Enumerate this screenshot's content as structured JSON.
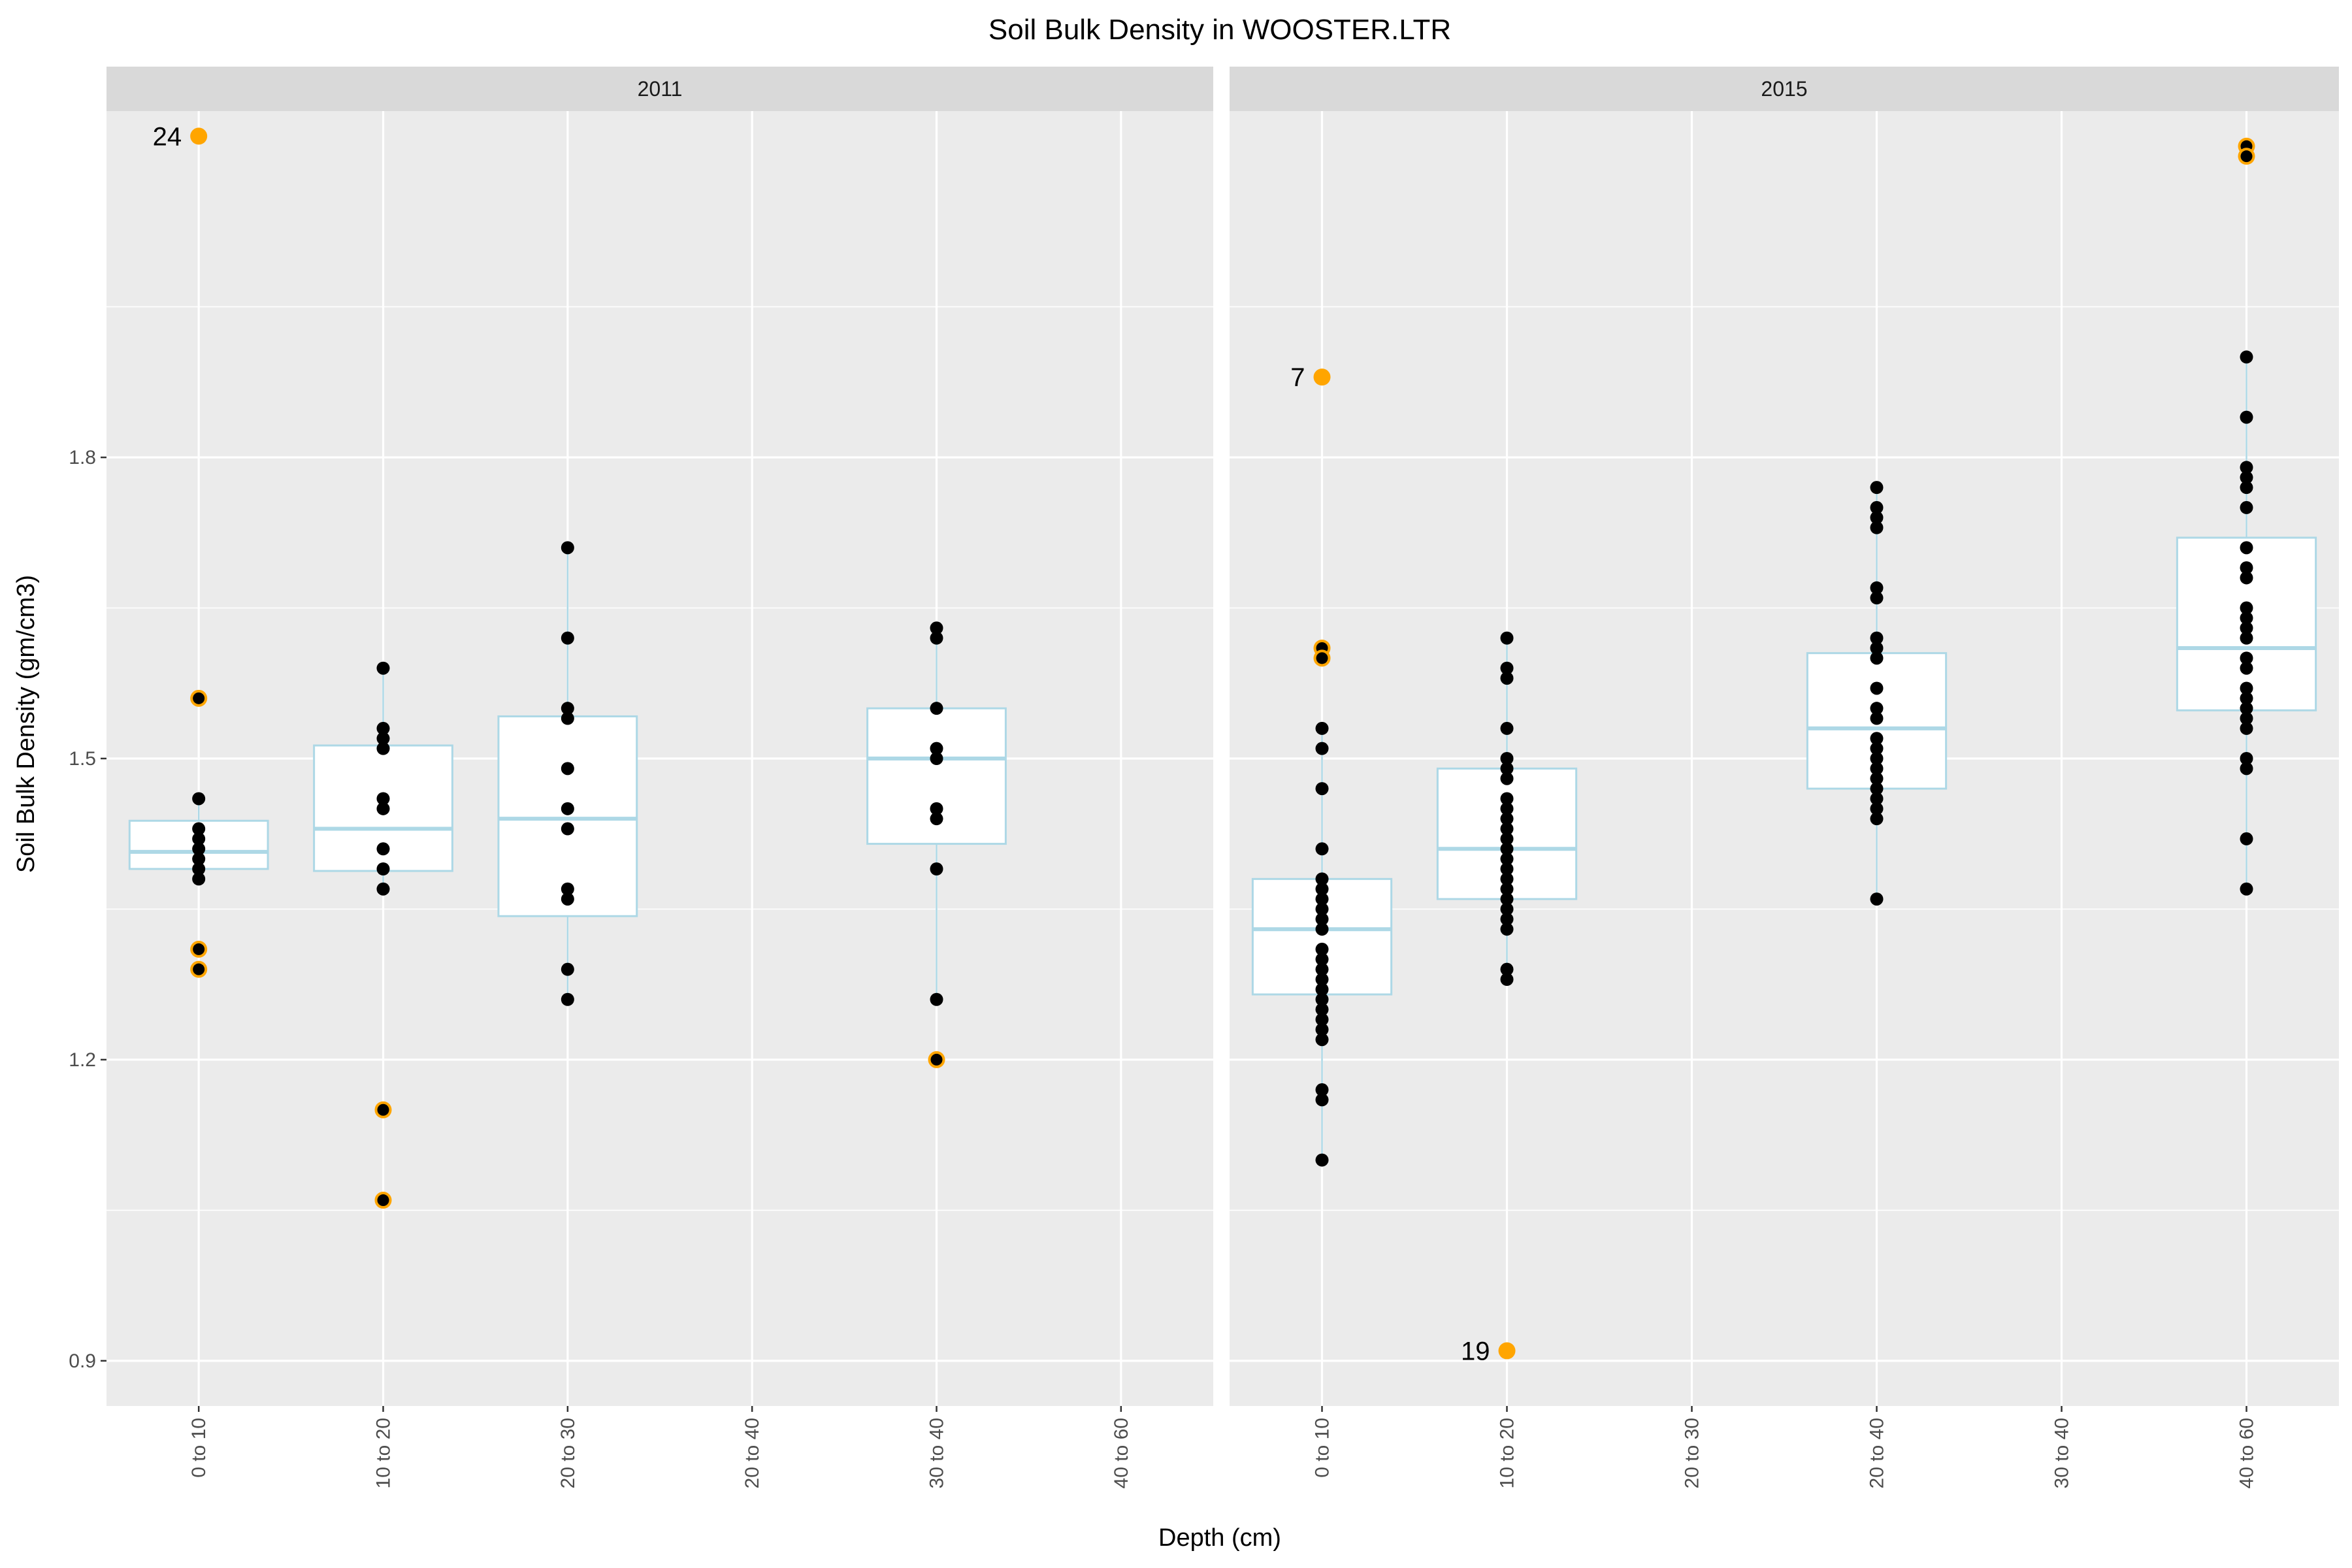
{
  "chart_data": {
    "type": "box",
    "title": "Soil Bulk Density in WOOSTER.LTR",
    "xlabel": "Depth (cm)",
    "ylabel": "Soil Bulk Density (gm/cm3)",
    "ylim": [
      0.855,
      2.145
    ],
    "y_ticks": [
      0.9,
      1.2,
      1.5,
      1.8
    ],
    "y_tick_labels": [
      "0.9",
      "1.2",
      "1.5",
      "1.8"
    ],
    "grid": true,
    "colors": {
      "panel_bg": "#ebebeb",
      "strip_bg": "#d9d9d9",
      "grid": "#ffffff",
      "box_line": "#add8e6",
      "box_fill": "#ffffff",
      "point": "#000000",
      "outlier": "#ffa500"
    },
    "categories": [
      "0 to 10",
      "10 to 20",
      "20 to 30",
      "20 to 40",
      "30 to 40",
      "40 to 60"
    ],
    "panels": [
      {
        "strip": "2011",
        "x_ticks": [
          "0 to 10",
          "10 to 20",
          "20 to 30",
          "20 to 40",
          "30 to 40",
          "40 to 60"
        ],
        "groups": [
          {
            "category": "0 to 10",
            "box": {
              "lower": 1.39,
              "q1": 1.39,
              "median": 1.407,
              "q3": 1.438,
              "upper": 1.46
            },
            "points": [
              1.38,
              1.39,
              1.4,
              1.41,
              1.42,
              1.43,
              1.46
            ],
            "outliers": [
              {
                "y": 2.12,
                "label": "24"
              },
              {
                "y": 1.56
              },
              {
                "y": 1.31
              },
              {
                "y": 1.29
              }
            ]
          },
          {
            "category": "10 to 20",
            "box": {
              "lower": 1.37,
              "q1": 1.388,
              "median": 1.43,
              "q3": 1.513,
              "upper": 1.59
            },
            "points": [
              1.37,
              1.39,
              1.41,
              1.45,
              1.46,
              1.51,
              1.52,
              1.53,
              1.59
            ],
            "outliers": [
              {
                "y": 1.15
              },
              {
                "y": 1.06
              }
            ]
          },
          {
            "category": "20 to 30",
            "box": {
              "lower": 1.26,
              "q1": 1.343,
              "median": 1.44,
              "q3": 1.542,
              "upper": 1.71
            },
            "points": [
              1.26,
              1.29,
              1.36,
              1.37,
              1.43,
              1.45,
              1.49,
              1.54,
              1.55,
              1.62,
              1.71
            ],
            "outliers": []
          },
          {
            "category": "30 to 40",
            "box": {
              "lower": 1.26,
              "q1": 1.415,
              "median": 1.5,
              "q3": 1.55,
              "upper": 1.63
            },
            "points": [
              1.26,
              1.39,
              1.44,
              1.45,
              1.5,
              1.51,
              1.55,
              1.62,
              1.63
            ],
            "outliers": [
              {
                "y": 1.2
              }
            ]
          }
        ]
      },
      {
        "strip": "2015",
        "x_ticks": [
          "0 to 10",
          "10 to 20",
          "20 to 30",
          "20 to 40",
          "30 to 40",
          "40 to 60"
        ],
        "groups": [
          {
            "category": "0 to 10",
            "box": {
              "lower": 1.1,
              "q1": 1.265,
              "median": 1.33,
              "q3": 1.38,
              "upper": 1.53
            },
            "points": [
              1.1,
              1.16,
              1.17,
              1.22,
              1.23,
              1.24,
              1.25,
              1.26,
              1.27,
              1.28,
              1.29,
              1.3,
              1.31,
              1.33,
              1.34,
              1.35,
              1.36,
              1.37,
              1.38,
              1.41,
              1.47,
              1.51,
              1.53
            ],
            "outliers": [
              {
                "y": 1.88,
                "label": "7"
              },
              {
                "y": 1.61
              },
              {
                "y": 1.6
              }
            ]
          },
          {
            "category": "10 to 20",
            "box": {
              "lower": 1.28,
              "q1": 1.36,
              "median": 1.41,
              "q3": 1.49,
              "upper": 1.62
            },
            "points": [
              1.28,
              1.29,
              1.33,
              1.34,
              1.35,
              1.36,
              1.37,
              1.38,
              1.39,
              1.4,
              1.41,
              1.42,
              1.43,
              1.44,
              1.45,
              1.46,
              1.48,
              1.49,
              1.5,
              1.53,
              1.58,
              1.59,
              1.62
            ],
            "outliers": [
              {
                "y": 0.91,
                "label": "19"
              }
            ]
          },
          {
            "category": "20 to 40",
            "box": {
              "lower": 1.36,
              "q1": 1.47,
              "median": 1.53,
              "q3": 1.605,
              "upper": 1.77
            },
            "points": [
              1.36,
              1.44,
              1.45,
              1.46,
              1.47,
              1.48,
              1.49,
              1.5,
              1.51,
              1.52,
              1.54,
              1.55,
              1.57,
              1.6,
              1.61,
              1.62,
              1.66,
              1.67,
              1.73,
              1.74,
              1.75,
              1.77
            ],
            "outliers": []
          },
          {
            "category": "40 to 60",
            "box": {
              "lower": 1.37,
              "q1": 1.548,
              "median": 1.61,
              "q3": 1.72,
              "upper": 1.9
            },
            "points": [
              1.37,
              1.42,
              1.49,
              1.5,
              1.53,
              1.54,
              1.55,
              1.56,
              1.57,
              1.59,
              1.6,
              1.62,
              1.63,
              1.64,
              1.65,
              1.68,
              1.69,
              1.71,
              1.75,
              1.77,
              1.78,
              1.79,
              1.84,
              1.9
            ],
            "outliers": [
              {
                "y": 2.11
              },
              {
                "y": 2.1
              }
            ]
          }
        ]
      }
    ]
  }
}
